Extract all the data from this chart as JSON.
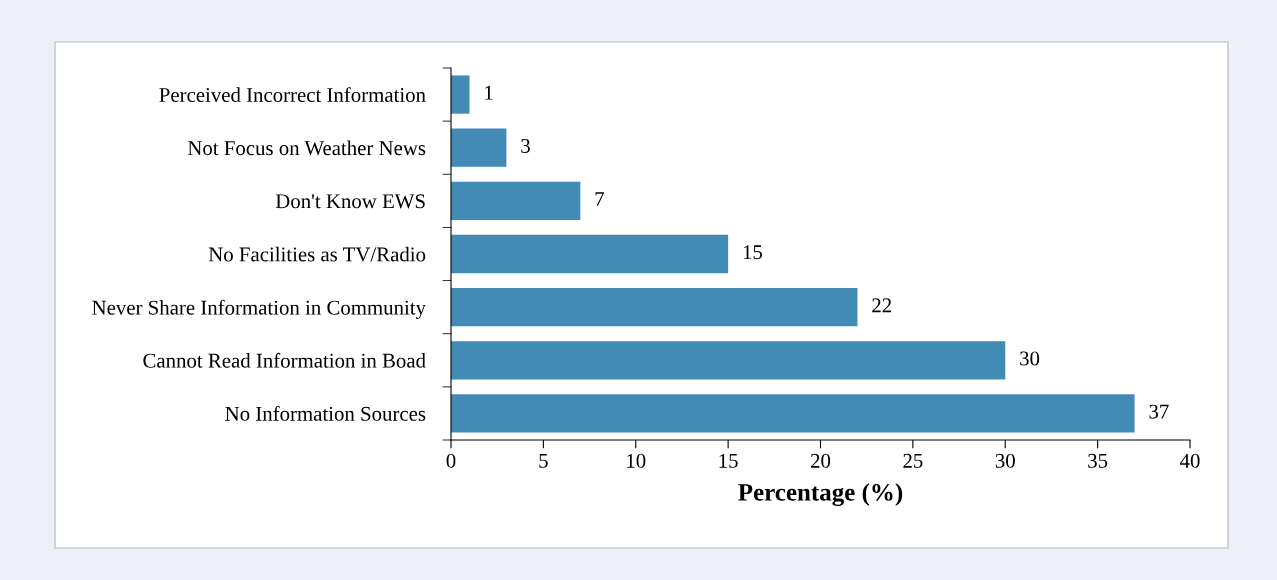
{
  "chart_data": {
    "type": "bar",
    "orientation": "horizontal",
    "xlabel": "Percentage (%)",
    "categories": [
      "Perceived Incorrect Information",
      "Not Focus on Weather News",
      "Don't Know EWS",
      "No Facilities as TV/Radio",
      "Never Share Information in Community",
      "Cannot Read Information in Boad",
      "No Information Sources"
    ],
    "values": [
      1,
      3,
      7,
      15,
      22,
      30,
      37
    ],
    "color": "#428bb5",
    "xlim": [
      0,
      40
    ],
    "xticks": [
      0,
      5,
      10,
      15,
      20,
      25,
      30,
      35,
      40
    ],
    "data_labels": true,
    "grid": false,
    "legend": false
  }
}
